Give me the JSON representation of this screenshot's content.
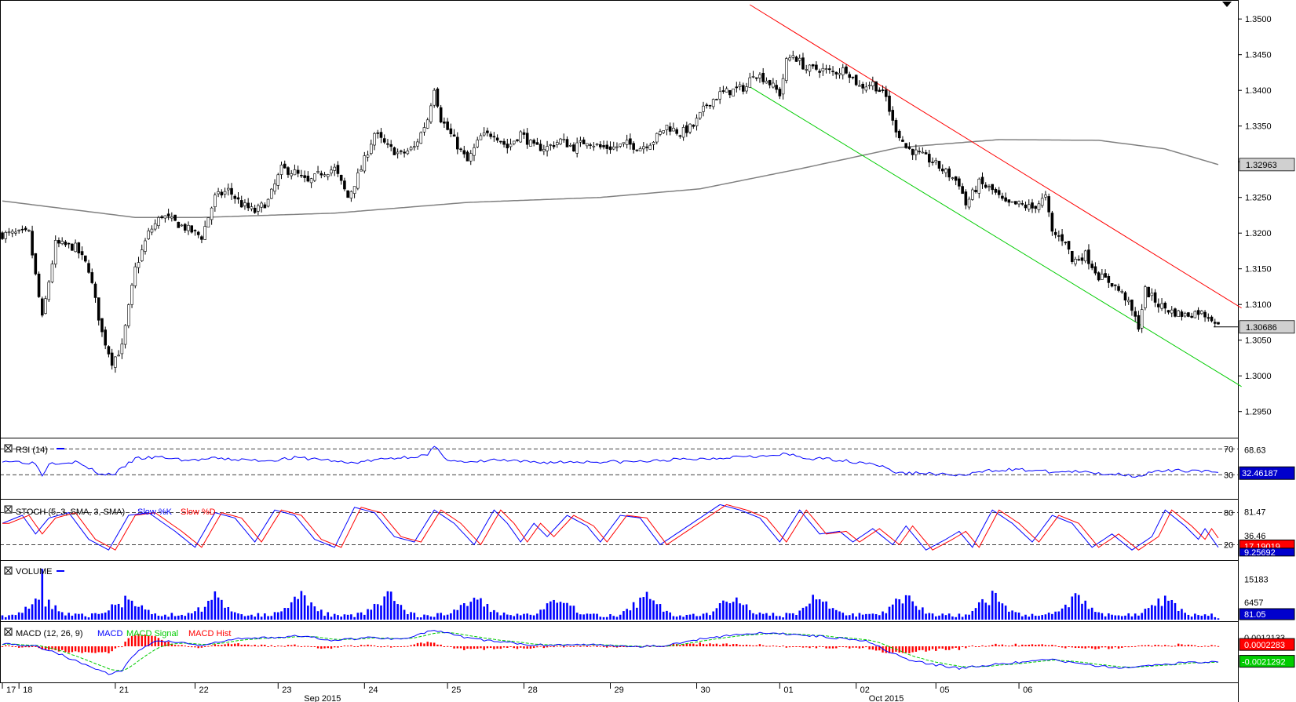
{
  "colors": {
    "up": "#ffffff",
    "down": "#000000",
    "ma": "#808080",
    "channel_upper": "#ff0000",
    "channel_lower": "#00cc00",
    "rsi": "#0000ff",
    "stoch_k": "#0000ff",
    "stoch_d": "#ff0000",
    "volume": "#0000ff",
    "macd_line": "#0000ff",
    "macd_signal": "#00cc00",
    "macd_hist": "#ff0000"
  },
  "chart_data": {
    "type": "candlestick",
    "ylim": [
      1.292,
      1.352
    ],
    "y_ticks": [
      "1.3500",
      "1.3450",
      "1.3400",
      "1.3350",
      "1.3300",
      "1.3250",
      "1.3200",
      "1.3150",
      "1.3100",
      "1.3050",
      "1.3000",
      "1.2950"
    ],
    "x_ticks": [
      "17",
      "18",
      "21",
      "22",
      "23",
      "24",
      "25",
      "28",
      "29",
      "30",
      "01",
      "02",
      "05",
      "06"
    ],
    "month_labels": [
      "Sep 2015",
      "Oct 2015"
    ],
    "price_labels": {
      "ma_value": "1.32963",
      "last_price": "1.30686"
    },
    "close_anchors": [
      [
        0,
        1.3198
      ],
      [
        8,
        1.32
      ],
      [
        12,
        1.308
      ],
      [
        16,
        1.3185
      ],
      [
        22,
        1.318
      ],
      [
        26,
        1.315
      ],
      [
        28,
        1.3105
      ],
      [
        30,
        1.306
      ],
      [
        33,
        1.302
      ],
      [
        36,
        1.304
      ],
      [
        40,
        1.315
      ],
      [
        44,
        1.32
      ],
      [
        48,
        1.3225
      ],
      [
        52,
        1.3215
      ],
      [
        56,
        1.3205
      ],
      [
        60,
        1.3195
      ],
      [
        64,
        1.325
      ],
      [
        68,
        1.326
      ],
      [
        72,
        1.324
      ],
      [
        76,
        1.323
      ],
      [
        80,
        1.3245
      ],
      [
        84,
        1.329
      ],
      [
        88,
        1.3285
      ],
      [
        92,
        1.327
      ],
      [
        96,
        1.3285
      ],
      [
        100,
        1.329
      ],
      [
        104,
        1.325
      ],
      [
        108,
        1.329
      ],
      [
        112,
        1.334
      ],
      [
        116,
        1.332
      ],
      [
        120,
        1.331
      ],
      [
        124,
        1.332
      ],
      [
        128,
        1.336
      ],
      [
        130,
        1.3405
      ],
      [
        132,
        1.336
      ],
      [
        136,
        1.333
      ],
      [
        140,
        1.33
      ],
      [
        144,
        1.3335
      ],
      [
        148,
        1.334
      ],
      [
        152,
        1.332
      ],
      [
        156,
        1.334
      ],
      [
        160,
        1.332
      ],
      [
        164,
        1.332
      ],
      [
        168,
        1.333
      ],
      [
        172,
        1.332
      ],
      [
        176,
        1.333
      ],
      [
        180,
        1.332
      ],
      [
        184,
        1.332
      ],
      [
        188,
        1.3325
      ],
      [
        192,
        1.332
      ],
      [
        196,
        1.333
      ],
      [
        200,
        1.335
      ],
      [
        204,
        1.334
      ],
      [
        208,
        1.335
      ],
      [
        212,
        1.338
      ],
      [
        216,
        1.3395
      ],
      [
        220,
        1.34
      ],
      [
        224,
        1.3405
      ],
      [
        226,
        1.3425
      ],
      [
        230,
        1.3415
      ],
      [
        234,
        1.3395
      ],
      [
        236,
        1.344
      ],
      [
        238,
        1.345
      ],
      [
        242,
        1.343
      ],
      [
        246,
        1.343
      ],
      [
        250,
        1.3425
      ],
      [
        254,
        1.343
      ],
      [
        258,
        1.3405
      ],
      [
        262,
        1.341
      ],
      [
        266,
        1.339
      ],
      [
        268,
        1.3355
      ],
      [
        272,
        1.332
      ],
      [
        276,
        1.331
      ],
      [
        280,
        1.33
      ],
      [
        284,
        1.3285
      ],
      [
        288,
        1.327
      ],
      [
        290,
        1.324
      ],
      [
        294,
        1.327
      ],
      [
        298,
        1.326
      ],
      [
        302,
        1.324
      ],
      [
        306,
        1.324
      ],
      [
        310,
        1.3235
      ],
      [
        314,
        1.325
      ],
      [
        316,
        1.32
      ],
      [
        320,
        1.319
      ],
      [
        322,
        1.316
      ],
      [
        326,
        1.317
      ],
      [
        330,
        1.314
      ],
      [
        334,
        1.313
      ],
      [
        338,
        1.311
      ],
      [
        342,
        1.307
      ],
      [
        344,
        1.312
      ],
      [
        348,
        1.31
      ],
      [
        352,
        1.309
      ],
      [
        356,
        1.3085
      ],
      [
        360,
        1.309
      ],
      [
        364,
        1.3082
      ],
      [
        366,
        1.3069
      ]
    ],
    "n_bars": 367,
    "seed": 7,
    "ma_anchors": [
      [
        0,
        1.3245
      ],
      [
        40,
        1.3222
      ],
      [
        60,
        1.3222
      ],
      [
        100,
        1.3228
      ],
      [
        140,
        1.3243
      ],
      [
        180,
        1.325
      ],
      [
        210,
        1.3262
      ],
      [
        240,
        1.329
      ],
      [
        270,
        1.332
      ],
      [
        300,
        1.3331
      ],
      [
        330,
        1.333
      ],
      [
        350,
        1.3318
      ],
      [
        366,
        1.3296
      ]
    ],
    "channel": {
      "upper": [
        [
          225,
          1.352
        ],
        [
          373,
          1.3095
        ]
      ],
      "lower": [
        [
          225,
          1.3405
        ],
        [
          373,
          1.2985
        ]
      ]
    },
    "rsi": {
      "label": "RSI (14)",
      "levels": [
        "70",
        "30"
      ],
      "value_labels": [
        "68.63",
        "32.46187"
      ],
      "anchors": [
        [
          0,
          52
        ],
        [
          10,
          48
        ],
        [
          12,
          28
        ],
        [
          14,
          48
        ],
        [
          22,
          50
        ],
        [
          30,
          30
        ],
        [
          34,
          32
        ],
        [
          40,
          55
        ],
        [
          48,
          57
        ],
        [
          56,
          52
        ],
        [
          64,
          55
        ],
        [
          72,
          53
        ],
        [
          80,
          52
        ],
        [
          88,
          56
        ],
        [
          96,
          54
        ],
        [
          104,
          48
        ],
        [
          108,
          50
        ],
        [
          116,
          55
        ],
        [
          128,
          60
        ],
        [
          130,
          73
        ],
        [
          134,
          54
        ],
        [
          140,
          48
        ],
        [
          148,
          53
        ],
        [
          156,
          50
        ],
        [
          164,
          49
        ],
        [
          172,
          50
        ],
        [
          180,
          50
        ],
        [
          188,
          50
        ],
        [
          196,
          51
        ],
        [
          200,
          53
        ],
        [
          208,
          54
        ],
        [
          216,
          56
        ],
        [
          224,
          60
        ],
        [
          230,
          58
        ],
        [
          236,
          62
        ],
        [
          242,
          55
        ],
        [
          250,
          54
        ],
        [
          256,
          50
        ],
        [
          262,
          48
        ],
        [
          266,
          40
        ],
        [
          270,
          32
        ],
        [
          276,
          33
        ],
        [
          284,
          30
        ],
        [
          290,
          29
        ],
        [
          296,
          36
        ],
        [
          302,
          38
        ],
        [
          310,
          37
        ],
        [
          316,
          34
        ],
        [
          322,
          35
        ],
        [
          330,
          32
        ],
        [
          336,
          31
        ],
        [
          342,
          28
        ],
        [
          346,
          34
        ],
        [
          352,
          36
        ],
        [
          360,
          37
        ],
        [
          366,
          32
        ]
      ]
    },
    "stoch": {
      "label": "STOCH (5, 3, SMA, 3, SMA)",
      "legend": [
        "Slow %K",
        "Slow %D"
      ],
      "levels": [
        "80",
        "20"
      ],
      "value_labels": [
        "81.47",
        "36.46",
        "17.19019",
        "9.25692"
      ],
      "anchors": [
        [
          0,
          60
        ],
        [
          6,
          75
        ],
        [
          10,
          40
        ],
        [
          14,
          70
        ],
        [
          20,
          80
        ],
        [
          26,
          30
        ],
        [
          32,
          10
        ],
        [
          38,
          75
        ],
        [
          44,
          80
        ],
        [
          52,
          45
        ],
        [
          58,
          15
        ],
        [
          64,
          80
        ],
        [
          70,
          70
        ],
        [
          76,
          25
        ],
        [
          82,
          85
        ],
        [
          88,
          75
        ],
        [
          94,
          30
        ],
        [
          100,
          15
        ],
        [
          106,
          90
        ],
        [
          112,
          80
        ],
        [
          118,
          35
        ],
        [
          124,
          25
        ],
        [
          130,
          85
        ],
        [
          136,
          60
        ],
        [
          142,
          20
        ],
        [
          148,
          85
        ],
        [
          152,
          60
        ],
        [
          156,
          25
        ],
        [
          160,
          60
        ],
        [
          164,
          35
        ],
        [
          170,
          75
        ],
        [
          176,
          55
        ],
        [
          180,
          25
        ],
        [
          186,
          75
        ],
        [
          192,
          70
        ],
        [
          198,
          20
        ],
        [
          204,
          45
        ],
        [
          210,
          70
        ],
        [
          216,
          95
        ],
        [
          222,
          85
        ],
        [
          228,
          70
        ],
        [
          234,
          25
        ],
        [
          240,
          85
        ],
        [
          246,
          40
        ],
        [
          252,
          45
        ],
        [
          256,
          25
        ],
        [
          262,
          50
        ],
        [
          268,
          20
        ],
        [
          272,
          55
        ],
        [
          278,
          10
        ],
        [
          284,
          30
        ],
        [
          288,
          45
        ],
        [
          292,
          15
        ],
        [
          298,
          85
        ],
        [
          304,
          60
        ],
        [
          310,
          25
        ],
        [
          316,
          75
        ],
        [
          322,
          60
        ],
        [
          328,
          15
        ],
        [
          334,
          40
        ],
        [
          340,
          10
        ],
        [
          346,
          35
        ],
        [
          350,
          85
        ],
        [
          356,
          55
        ],
        [
          360,
          30
        ],
        [
          362,
          50
        ],
        [
          366,
          15
        ]
      ]
    },
    "volume": {
      "label": "VOLUME",
      "value_labels": [
        "15183",
        "6457",
        "81.05"
      ],
      "ymax": 20000,
      "seed": 11
    },
    "macd": {
      "label": "MACD (12, 26, 9)",
      "legend": [
        "MACD",
        "MACD Signal",
        "MACD Hist"
      ],
      "value_labels": [
        "0.0012133",
        "0.0002283",
        "-0.0021292"
      ],
      "ylim": [
        -0.0045,
        0.003
      ],
      "macd_anchors": [
        [
          0,
          0.0004
        ],
        [
          10,
          0.0
        ],
        [
          16,
          -0.0008
        ],
        [
          22,
          -0.002
        ],
        [
          28,
          -0.003
        ],
        [
          32,
          -0.0038
        ],
        [
          36,
          -0.0033
        ],
        [
          40,
          -0.001
        ],
        [
          46,
          0.0008
        ],
        [
          52,
          0.0006
        ],
        [
          60,
          0.0001
        ],
        [
          70,
          0.001
        ],
        [
          80,
          0.0012
        ],
        [
          90,
          0.0014
        ],
        [
          100,
          0.0008
        ],
        [
          110,
          0.0012
        ],
        [
          120,
          0.001
        ],
        [
          130,
          0.0022
        ],
        [
          140,
          0.0011
        ],
        [
          150,
          0.0006
        ],
        [
          160,
          0.0002
        ],
        [
          170,
          0.0002
        ],
        [
          180,
          0.0002
        ],
        [
          190,
          0.0
        ],
        [
          200,
          0.0001
        ],
        [
          210,
          0.001
        ],
        [
          220,
          0.0016
        ],
        [
          230,
          0.0018
        ],
        [
          240,
          0.0016
        ],
        [
          250,
          0.0012
        ],
        [
          260,
          0.0008
        ],
        [
          266,
          -0.0005
        ],
        [
          272,
          -0.0018
        ],
        [
          280,
          -0.0025
        ],
        [
          288,
          -0.003
        ],
        [
          296,
          -0.0026
        ],
        [
          306,
          -0.0022
        ],
        [
          316,
          -0.0018
        ],
        [
          326,
          -0.0025
        ],
        [
          336,
          -0.003
        ],
        [
          346,
          -0.0026
        ],
        [
          356,
          -0.0022
        ],
        [
          366,
          -0.0021
        ]
      ]
    }
  }
}
